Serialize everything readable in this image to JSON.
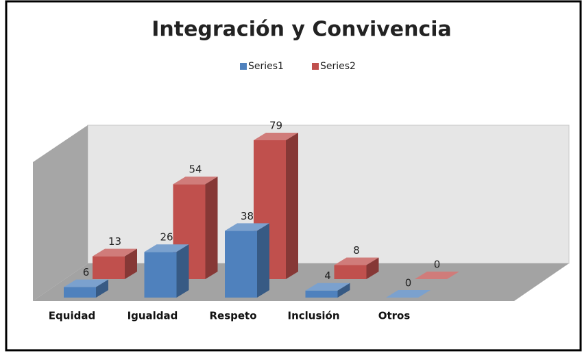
{
  "chart_data": {
    "type": "bar3d",
    "title": "Integración y Convivencia",
    "categories": [
      "Equidad",
      "Igualdad",
      "Respeto",
      "Inclusión",
      "Otros"
    ],
    "series": [
      {
        "name": "Series1",
        "color": "#4f81bd",
        "values": [
          6,
          26,
          38,
          4,
          0
        ]
      },
      {
        "name": "Series2",
        "color": "#c0504d",
        "values": [
          13,
          54,
          79,
          8,
          0
        ]
      }
    ],
    "legend": "top"
  }
}
